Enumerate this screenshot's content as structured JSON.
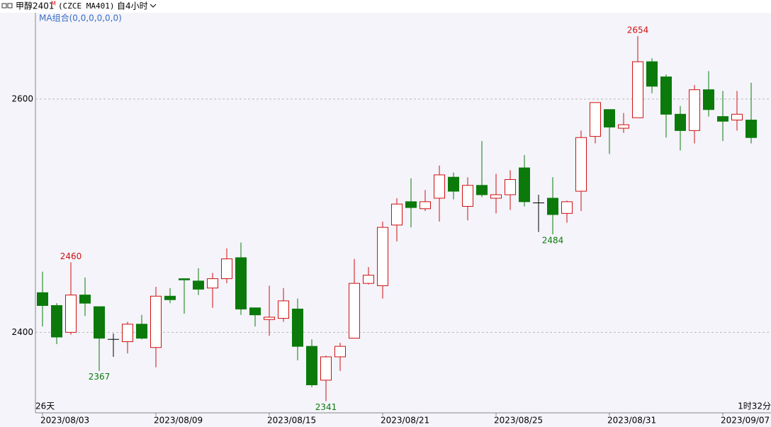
{
  "header": {
    "symbol": "甲醇2401",
    "badge": "M",
    "code": "(CZCE MA401)",
    "period": "自4小时",
    "indicator": "MA组合(0,0,0,0,0,0)",
    "span": "26天",
    "elapsed": "1时32分"
  },
  "chart_data": {
    "type": "candlestick",
    "categories": [
      "2023/08/03",
      null,
      null,
      null,
      null,
      null,
      null,
      null,
      "2023/08/09",
      null,
      null,
      null,
      null,
      null,
      null,
      null,
      "2023/08/15",
      null,
      null,
      null,
      null,
      null,
      null,
      null,
      "2023/08/21",
      null,
      null,
      null,
      null,
      null,
      null,
      null,
      "2023/08/25",
      null,
      null,
      null,
      null,
      null,
      null,
      null,
      "2023/08/31",
      null,
      null,
      null,
      null,
      null,
      null,
      null,
      "2023/09/07",
      null,
      null
    ],
    "open": [
      2434,
      2423,
      2400,
      2432,
      2422,
      2394,
      2392,
      2407,
      2387,
      2431,
      2446,
      2444,
      2438,
      2446,
      2464,
      2421,
      2411,
      2412,
      2420,
      2388,
      2359,
      2379,
      2395,
      2442,
      2440,
      2492,
      2512,
      2506,
      2515,
      2533,
      2508,
      2526,
      2515,
      2518,
      2541,
      2511,
      2515,
      2502,
      2521,
      2568,
      2591,
      2575,
      2584,
      2632,
      2619,
      2587,
      2573,
      2608,
      2585,
      2582,
      2582
    ],
    "high": [
      2452,
      2425,
      2460,
      2447,
      2422,
      2399,
      2409,
      2415,
      2439,
      2438,
      2446,
      2455,
      2451,
      2472,
      2477,
      2421,
      2440,
      2438,
      2429,
      2394,
      2380,
      2391,
      2463,
      2456,
      2495,
      2515,
      2532,
      2522,
      2543,
      2537,
      2533,
      2564,
      2536,
      2539,
      2552,
      2518,
      2533,
      2513,
      2573,
      2597,
      2591,
      2588,
      2654,
      2635,
      2621,
      2594,
      2612,
      2624,
      2607,
      2607,
      2614
    ],
    "low": [
      2405,
      2390,
      2398,
      2414,
      2367,
      2379,
      2382,
      2394,
      2370,
      2425,
      2416,
      2432,
      2421,
      2442,
      2415,
      2405,
      2397,
      2409,
      2376,
      2353,
      2341,
      2367,
      2395,
      2441,
      2429,
      2478,
      2490,
      2504,
      2495,
      2514,
      2496,
      2516,
      2502,
      2505,
      2508,
      2486,
      2484,
      2494,
      2504,
      2562,
      2553,
      2571,
      2584,
      2605,
      2567,
      2556,
      2562,
      2585,
      2564,
      2573,
      2562
    ],
    "close": [
      2423,
      2396,
      2432,
      2425,
      2395,
      2394,
      2407,
      2395,
      2431,
      2428,
      2445,
      2437,
      2446,
      2463,
      2420,
      2415,
      2413,
      2427,
      2388,
      2355,
      2379,
      2388,
      2442,
      2449,
      2490,
      2510,
      2507,
      2512,
      2535,
      2521,
      2526,
      2518,
      2518,
      2531,
      2512,
      2511,
      2501,
      2512,
      2567,
      2597,
      2576,
      2578,
      2632,
      2611,
      2587,
      2573,
      2608,
      2591,
      2581,
      2587,
      2567
    ],
    "up_color": "#d01010",
    "down_color": "#0b7a0b",
    "flat_color": "#000000",
    "ylim": [
      2331,
      2674
    ],
    "yticks": [
      2400,
      2600
    ],
    "grid": true
  }
}
